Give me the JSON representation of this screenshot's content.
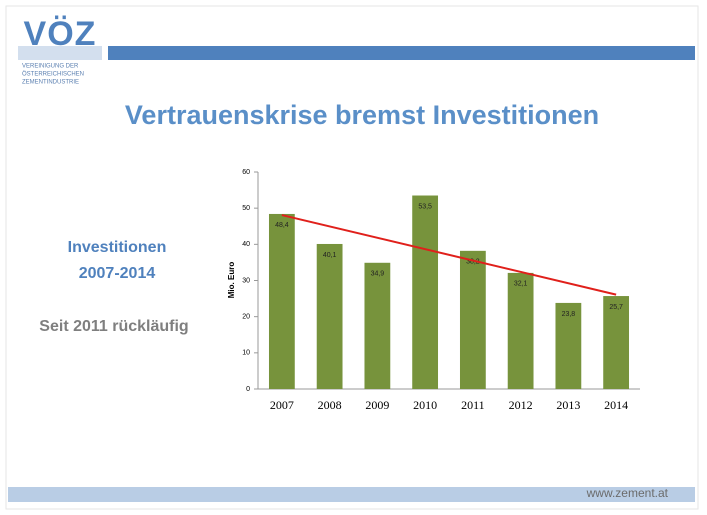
{
  "header": {
    "logo": "VÖZ",
    "logo_lines": [
      "VEREINIGUNG DER",
      "ÖSTERREICHISCHEN",
      "ZEMENTINDUSTRIE"
    ],
    "title": "Vertrauenskrise bremst Investitionen"
  },
  "sidebar": {
    "lines": [
      "Investitionen",
      "2007-2014"
    ],
    "note": "Seit 2011 rückläufig"
  },
  "chart_data": {
    "type": "bar",
    "y_label": "Mio. Euro",
    "categories": [
      "2007",
      "2008",
      "2009",
      "2010",
      "2011",
      "2012",
      "2013",
      "2014"
    ],
    "values": [
      48.4,
      40.1,
      34.9,
      53.5,
      38.2,
      32.1,
      23.8,
      25.7
    ],
    "value_labels": [
      "48,4",
      "40,1",
      "34,9",
      "53,5",
      "38,2",
      "32,1",
      "23,8",
      "25,7"
    ],
    "color": "#77933c",
    "ylim": [
      0,
      60
    ],
    "yticks": [
      0,
      10,
      20,
      30,
      40,
      50,
      60
    ],
    "grid": false,
    "trendline": {
      "color": "#e0201b",
      "values": [
        48.1,
        26.1
      ]
    }
  },
  "footer": {
    "url": "www.zement.at"
  }
}
